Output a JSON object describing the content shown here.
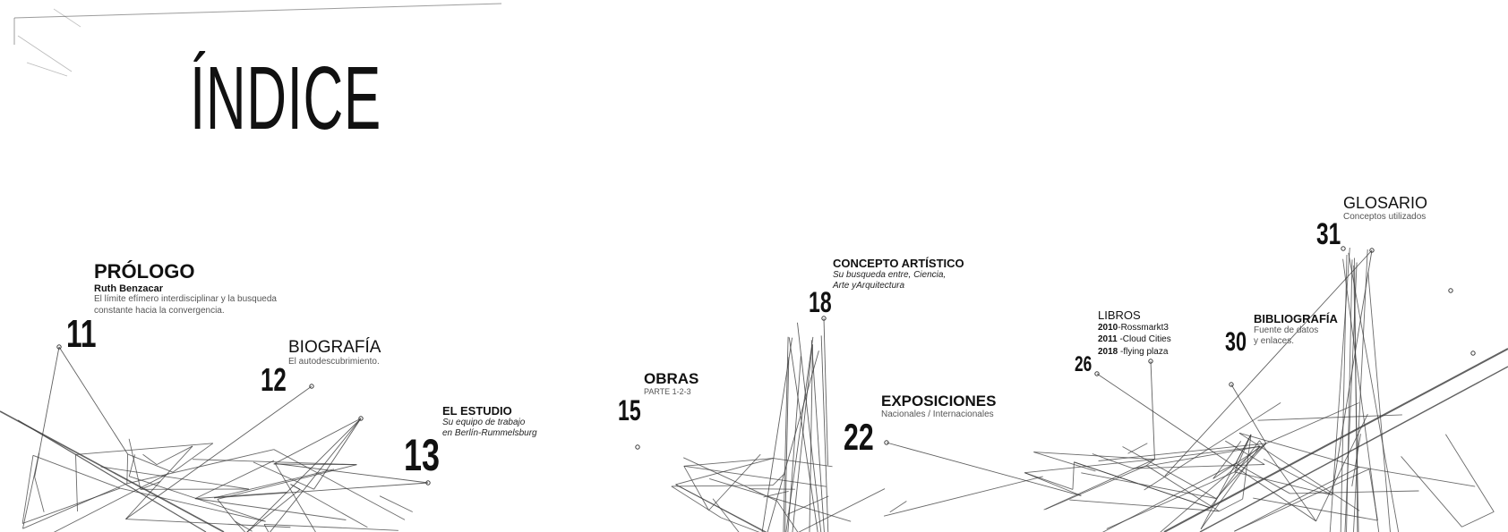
{
  "page": {
    "title": "ÍNDICE"
  },
  "entries": [
    {
      "id": "prologo",
      "number": "11",
      "title": "PRÓLOGO",
      "author": "Ruth Benzacar",
      "description": [
        "El límite efímero interdisciplinar y la busqueda",
        "constante hacia la convergencia."
      ]
    },
    {
      "id": "biografia",
      "number": "12",
      "title": "BIOGRAFÍA",
      "description": [
        "El autodescubrimiento."
      ]
    },
    {
      "id": "estudio",
      "number": "13",
      "title": "EL ESTUDIO",
      "description": [
        "Su equipo de trabajo",
        "en Berlín-Rummelsburg"
      ]
    },
    {
      "id": "obras",
      "number": "15",
      "title": "OBRAS",
      "description": [
        "PARTE 1-2-3"
      ]
    },
    {
      "id": "concepto",
      "number": "18",
      "title": "CONCEPTO ARTÍSTICO",
      "description": [
        "Su busqueda entre, Ciencia,",
        "Arte yArquitectura"
      ]
    },
    {
      "id": "exposiciones",
      "number": "22",
      "title": "EXPOSICIONES",
      "description": [
        "Nacionales / Internacionales"
      ]
    },
    {
      "id": "libros",
      "number": "26",
      "title": "LIBROS",
      "books": [
        {
          "year": "2010",
          "name": "-Rossmarkt3"
        },
        {
          "year": "2011",
          "name": " -Cloud Cities"
        },
        {
          "year": "2018",
          "name": " -flying plaza"
        }
      ]
    },
    {
      "id": "bibliografia",
      "number": "30",
      "title": "BIBLIOGRAFÍA",
      "description": [
        "Fuente de datos",
        "y enlaces."
      ]
    },
    {
      "id": "glosario",
      "number": "31",
      "title": "GLOSARIO",
      "description": [
        "Conceptos utilizados"
      ]
    }
  ],
  "colors": {
    "text": "#111111",
    "subtext": "#555555",
    "web": "#3a3a3a"
  }
}
